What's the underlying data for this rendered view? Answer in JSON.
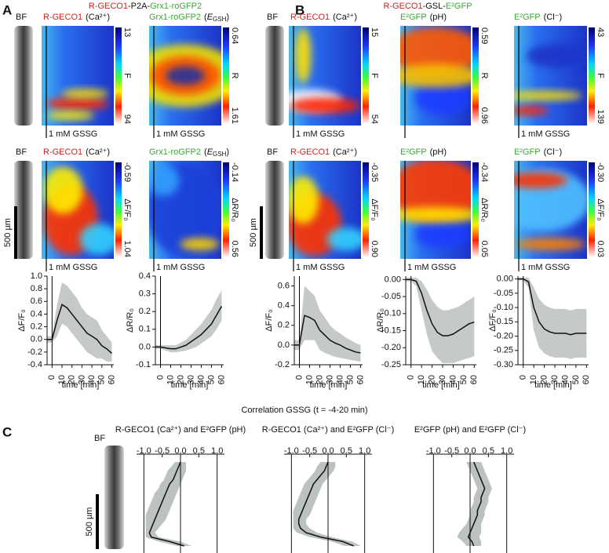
{
  "figure": {
    "panel_labels": [
      "A",
      "B",
      "C"
    ],
    "title_a": [
      "R-GECO1",
      "-P2A-",
      "Grx1-roGFP2"
    ],
    "title_b": [
      "R-GECO1",
      "-GSL-",
      "E²GFP"
    ],
    "bf": "BF",
    "gssg": "1 mM GSSG",
    "scale": "500 µm",
    "correlation_title": "Correlation GSSG (t = -4-20 min)",
    "heatmaps": [
      {
        "label": "R-GECO1",
        "note": "(Ca²⁺)",
        "color": "#d81e1e",
        "cbar_top": "13",
        "cbar_bottom": "94",
        "cbar_label": "F"
      },
      {
        "label": "Grx1-roGFP2",
        "note": [
          "(",
          "E",
          "GSH",
          ")"
        ],
        "color": "#3aa935",
        "cbar_top": "0.64",
        "cbar_bottom": "1.61",
        "cbar_label": "R"
      },
      {
        "label": "R-GECO1",
        "note": "(Ca²⁺)",
        "color": "#d81e1e",
        "cbar_top": "15",
        "cbar_bottom": "54",
        "cbar_label": "F"
      },
      {
        "label": "E²GFP",
        "note": "(pH)",
        "color": "#3aa935",
        "cbar_top": "0.59",
        "cbar_bottom": "0.96",
        "cbar_label": "R"
      },
      {
        "label": "E²GFP",
        "note": "(Cl⁻)",
        "color": "#3aa935",
        "cbar_top": "43",
        "cbar_bottom": "139",
        "cbar_label": "F"
      },
      {
        "label": "R-GECO1",
        "note": "(Ca²⁺)",
        "color": "#d81e1e",
        "cbar_top": "-0.59",
        "cbar_bottom": "1.04",
        "cbar_label": "ΔF/F₀"
      },
      {
        "label": "Grx1-roGFP2",
        "note": [
          "(",
          "E",
          "GSH",
          ")"
        ],
        "color": "#3aa935",
        "cbar_top": "-0.14",
        "cbar_bottom": "0.56",
        "cbar_label": "ΔR/R₀"
      },
      {
        "label": "R-GECO1",
        "note": "(Ca²⁺)",
        "color": "#d81e1e",
        "cbar_top": "-0.35",
        "cbar_bottom": "0.90",
        "cbar_label": "ΔF/F₀"
      },
      {
        "label": "E²GFP",
        "note": "(pH)",
        "color": "#3aa935",
        "cbar_top": "-0.34",
        "cbar_bottom": "0.05",
        "cbar_label": "ΔR/R₀"
      },
      {
        "label": "E²GFP",
        "note": "(Cl⁻)",
        "color": "#3aa935",
        "cbar_top": "-0.30",
        "cbar_bottom": "0.03",
        "cbar_label": "ΔF/F₀"
      }
    ]
  },
  "chart_data": [
    {
      "type": "line",
      "xlabel": "time [min]",
      "ylabel": "ΔF/F₀",
      "color": "#111111",
      "band_color": "#c5cac8",
      "x": [
        -5,
        0,
        5,
        10,
        15,
        20,
        25,
        30,
        35,
        40,
        45,
        50,
        55,
        60
      ],
      "values": [
        0,
        0,
        0.3,
        0.55,
        0.5,
        0.4,
        0.3,
        0.2,
        0.1,
        0.05,
        0,
        -0.1,
        -0.15,
        -0.22
      ],
      "lower": [
        -0.05,
        -0.05,
        0.05,
        0.25,
        0.2,
        0.1,
        0,
        -0.1,
        -0.2,
        -0.25,
        -0.3,
        -0.3,
        -0.35,
        -0.35
      ],
      "upper": [
        0.05,
        0.05,
        0.55,
        0.9,
        0.85,
        0.75,
        0.65,
        0.5,
        0.4,
        0.35,
        0.3,
        0.15,
        0.05,
        -0.05
      ],
      "xlim": [
        -5,
        62
      ],
      "xticks": [
        0,
        10,
        20,
        30,
        40,
        50,
        60
      ],
      "ylim": [
        -0.4,
        1.0
      ],
      "yticks": [
        -0.4,
        -0.2,
        {
          "value": 0,
          "label": "0.0"
        },
        0.2,
        0.4,
        0.6,
        0.8,
        {
          "value": 1,
          "label": "1.0"
        }
      ]
    },
    {
      "type": "line",
      "xlabel": "time [min]",
      "ylabel": "ΔR/R₀",
      "color": "#111111",
      "band_color": "#c5cac8",
      "x": [
        -5,
        0,
        5,
        10,
        15,
        20,
        25,
        30,
        35,
        40,
        45,
        50,
        55,
        60
      ],
      "values": [
        0,
        0,
        -0.005,
        -0.01,
        -0.01,
        0,
        0.01,
        0.03,
        0.05,
        0.07,
        0.1,
        0.13,
        0.18,
        0.23
      ],
      "lower": [
        -0.01,
        -0.01,
        -0.02,
        -0.03,
        -0.03,
        -0.025,
        -0.02,
        -0.01,
        0.0,
        0.02,
        0.04,
        0.06,
        0.1,
        0.15
      ],
      "upper": [
        0.01,
        0.01,
        0.01,
        0.01,
        0.01,
        0.025,
        0.04,
        0.07,
        0.1,
        0.13,
        0.17,
        0.21,
        0.27,
        0.32
      ],
      "xlim": [
        -5,
        62
      ],
      "xticks": [
        0,
        10,
        20,
        30,
        40,
        50,
        60
      ],
      "ylim": [
        -0.1,
        0.4
      ],
      "yticks": [
        -0.1,
        {
          "value": 0,
          "label": "0.0"
        },
        0.1,
        0.2,
        0.3,
        0.4
      ]
    },
    {
      "type": "line",
      "xlabel": "time [min]",
      "ylabel": "ΔF/F₀",
      "color": "#111111",
      "band_color": "#c5cac8",
      "x": [
        -5,
        0,
        5,
        10,
        15,
        20,
        25,
        30,
        35,
        40,
        45,
        50,
        55,
        60
      ],
      "values": [
        0,
        0,
        0.3,
        0.28,
        0.25,
        0.15,
        0.1,
        0.05,
        0.02,
        0,
        -0.03,
        -0.05,
        -0.07,
        -0.08
      ],
      "lower": [
        -0.05,
        -0.05,
        0.05,
        0.05,
        0.05,
        -0.05,
        -0.08,
        -0.1,
        -0.12,
        -0.13,
        -0.14,
        -0.15,
        -0.16,
        -0.17
      ],
      "upper": [
        0.05,
        0.05,
        0.6,
        0.55,
        0.5,
        0.35,
        0.28,
        0.2,
        0.15,
        0.12,
        0.08,
        0.05,
        0.02,
        0.0
      ],
      "xlim": [
        -5,
        62
      ],
      "xticks": [
        0,
        10,
        20,
        30,
        40,
        50,
        60
      ],
      "ylim": [
        -0.2,
        0.7
      ],
      "yticks": [
        -0.2,
        {
          "value": 0,
          "label": "0.0"
        },
        0.2,
        0.4,
        0.6
      ]
    },
    {
      "type": "line",
      "xlabel": "time [min]",
      "ylabel": "ΔR/R₀",
      "color": "#111111",
      "band_color": "#c5cac8",
      "x": [
        -5,
        0,
        5,
        10,
        15,
        20,
        25,
        30,
        35,
        40,
        45,
        50,
        55,
        60
      ],
      "values": [
        0,
        0,
        -0.005,
        -0.04,
        -0.09,
        -0.13,
        -0.155,
        -0.165,
        -0.165,
        -0.16,
        -0.15,
        -0.14,
        -0.13,
        -0.125
      ],
      "lower": [
        -0.005,
        -0.005,
        -0.02,
        -0.09,
        -0.16,
        -0.21,
        -0.23,
        -0.245,
        -0.245,
        -0.245,
        -0.24,
        -0.235,
        -0.23,
        -0.225
      ],
      "upper": [
        0.005,
        0.005,
        0.005,
        -0.005,
        -0.03,
        -0.06,
        -0.08,
        -0.09,
        -0.09,
        -0.085,
        -0.08,
        -0.07,
        -0.06,
        -0.05
      ],
      "xlim": [
        -5,
        62
      ],
      "xticks": [
        0,
        10,
        20,
        30,
        40,
        50,
        60
      ],
      "ylim": [
        -0.25,
        0.01
      ],
      "yticks": [
        {
          "value": -0.25,
          "label": "-0.25"
        },
        {
          "value": -0.2,
          "label": "-0.20"
        },
        {
          "value": -0.15,
          "label": "-0.15"
        },
        {
          "value": -0.1,
          "label": "-0.10"
        },
        {
          "value": -0.05,
          "label": "-0.05"
        },
        {
          "value": 0,
          "label": "0.00"
        }
      ]
    },
    {
      "type": "line",
      "xlabel": "time [min]",
      "ylabel": "ΔF/F₀",
      "color": "#111111",
      "band_color": "#c5cac8",
      "x": [
        -5,
        0,
        5,
        10,
        15,
        20,
        25,
        30,
        35,
        40,
        45,
        50,
        55,
        60
      ],
      "values": [
        0,
        0,
        -0.01,
        -0.1,
        -0.15,
        -0.175,
        -0.185,
        -0.19,
        -0.19,
        -0.19,
        -0.195,
        -0.19,
        -0.19,
        -0.19
      ],
      "lower": [
        -0.005,
        -0.005,
        -0.03,
        -0.18,
        -0.24,
        -0.26,
        -0.27,
        -0.275,
        -0.275,
        -0.275,
        -0.28,
        -0.275,
        -0.275,
        -0.275
      ],
      "upper": [
        0.005,
        0.005,
        0.005,
        -0.03,
        -0.07,
        -0.09,
        -0.1,
        -0.105,
        -0.105,
        -0.105,
        -0.11,
        -0.105,
        -0.105,
        -0.105
      ],
      "xlim": [
        -5,
        62
      ],
      "xticks": [
        0,
        10,
        20,
        30,
        40,
        50,
        60
      ],
      "ylim": [
        -0.3,
        0.01
      ],
      "yticks": [
        {
          "value": -0.3,
          "label": "-0.30"
        },
        {
          "value": -0.25,
          "label": "-0.25"
        },
        {
          "value": -0.2,
          "label": "-0.20"
        },
        {
          "value": -0.15,
          "label": "-0.15"
        },
        {
          "value": -0.1,
          "label": "-0.10"
        },
        {
          "value": -0.05,
          "label": "-0.05"
        },
        {
          "value": 0,
          "label": "0.00"
        }
      ]
    },
    {
      "type": "profile",
      "title": "R-GECO1 (Ca²⁺) and E²GFP (pH)",
      "color": "#111111",
      "band_color": "#bcc2c0",
      "values": [
        0,
        -0.05,
        -0.1,
        -0.15,
        -0.2,
        -0.3,
        -0.35,
        -0.4,
        -0.45,
        -0.5,
        -0.55,
        -0.6,
        -0.65,
        -0.7,
        -0.75,
        -0.8,
        -0.85,
        -0.8,
        -0.3,
        0.1
      ],
      "lower": [
        -0.15,
        -0.25,
        -0.35,
        -0.4,
        -0.45,
        -0.55,
        -0.6,
        -0.7,
        -0.75,
        -0.8,
        -0.85,
        -0.9,
        -0.95,
        -0.95,
        -0.95,
        -0.95,
        -0.95,
        -0.95,
        -0.6,
        -0.1
      ],
      "upper": [
        0.15,
        0.15,
        0.15,
        0.1,
        0.05,
        0,
        -0.05,
        -0.1,
        -0.15,
        -0.2,
        -0.25,
        -0.3,
        -0.35,
        -0.4,
        -0.5,
        -0.6,
        -0.7,
        -0.6,
        0.0,
        0.3
      ],
      "xlim": [
        -1.2,
        1.2
      ],
      "xticks": [
        {
          "value": -1,
          "label": "-1.0"
        },
        -0.5,
        {
          "value": 0,
          "label": "0.0"
        },
        0.5,
        {
          "value": 1,
          "label": "1.0"
        }
      ]
    },
    {
      "type": "profile",
      "title": "R-GECO1 (Ca²⁺) and E²GFP (Cl⁻)",
      "color": "#111111",
      "band_color": "#bcc2c0",
      "values": [
        0,
        -0.05,
        -0.1,
        -0.2,
        -0.3,
        -0.4,
        -0.45,
        -0.5,
        -0.55,
        -0.6,
        -0.65,
        -0.7,
        -0.75,
        -0.8,
        -0.8,
        -0.75,
        -0.6,
        -0.2,
        0.4,
        0.7
      ],
      "lower": [
        -0.2,
        -0.3,
        -0.35,
        -0.45,
        -0.55,
        -0.65,
        -0.7,
        -0.75,
        -0.8,
        -0.85,
        -0.9,
        -0.95,
        -0.95,
        -0.95,
        -0.95,
        -0.95,
        -0.85,
        -0.5,
        0.1,
        0.45
      ],
      "upper": [
        0.2,
        0.2,
        0.15,
        0.05,
        -0.05,
        -0.15,
        -0.2,
        -0.25,
        -0.3,
        -0.35,
        -0.4,
        -0.45,
        -0.5,
        -0.6,
        -0.6,
        -0.5,
        -0.3,
        0.1,
        0.65,
        0.9
      ],
      "xlim": [
        -1.2,
        1.2
      ],
      "xticks": [
        {
          "value": -1,
          "label": "-1.0"
        },
        -0.5,
        {
          "value": 0,
          "label": "0.0"
        },
        0.5,
        {
          "value": 1,
          "label": "1.0"
        }
      ]
    },
    {
      "type": "profile",
      "title": "E²GFP (pH) and E²GFP (Cl⁻)",
      "color": "#111111",
      "band_color": "#bcc2c0",
      "values": [
        0.1,
        0.15,
        0.2,
        0.25,
        0.3,
        0.35,
        0.4,
        0.35,
        0.3,
        0.3,
        0.25,
        0.2,
        0.2,
        0.15,
        0.1,
        0.05,
        0,
        -0.05,
        0.05,
        0.1
      ],
      "lower": [
        -0.1,
        -0.05,
        0,
        0.05,
        0.1,
        0.15,
        0.2,
        0.15,
        0.1,
        0.1,
        0.05,
        0,
        0,
        -0.05,
        -0.1,
        -0.2,
        -0.3,
        -0.35,
        -0.2,
        -0.1
      ],
      "upper": [
        0.3,
        0.35,
        0.4,
        0.45,
        0.5,
        0.55,
        0.6,
        0.55,
        0.5,
        0.5,
        0.45,
        0.4,
        0.4,
        0.35,
        0.3,
        0.3,
        0.3,
        0.25,
        0.3,
        0.3
      ],
      "xlim": [
        -1.2,
        1.2
      ],
      "xticks": [
        {
          "value": -1,
          "label": "-1.0"
        },
        -0.5,
        {
          "value": 0,
          "label": "0.0"
        },
        0.5,
        {
          "value": 1,
          "label": "1.0"
        }
      ]
    }
  ]
}
